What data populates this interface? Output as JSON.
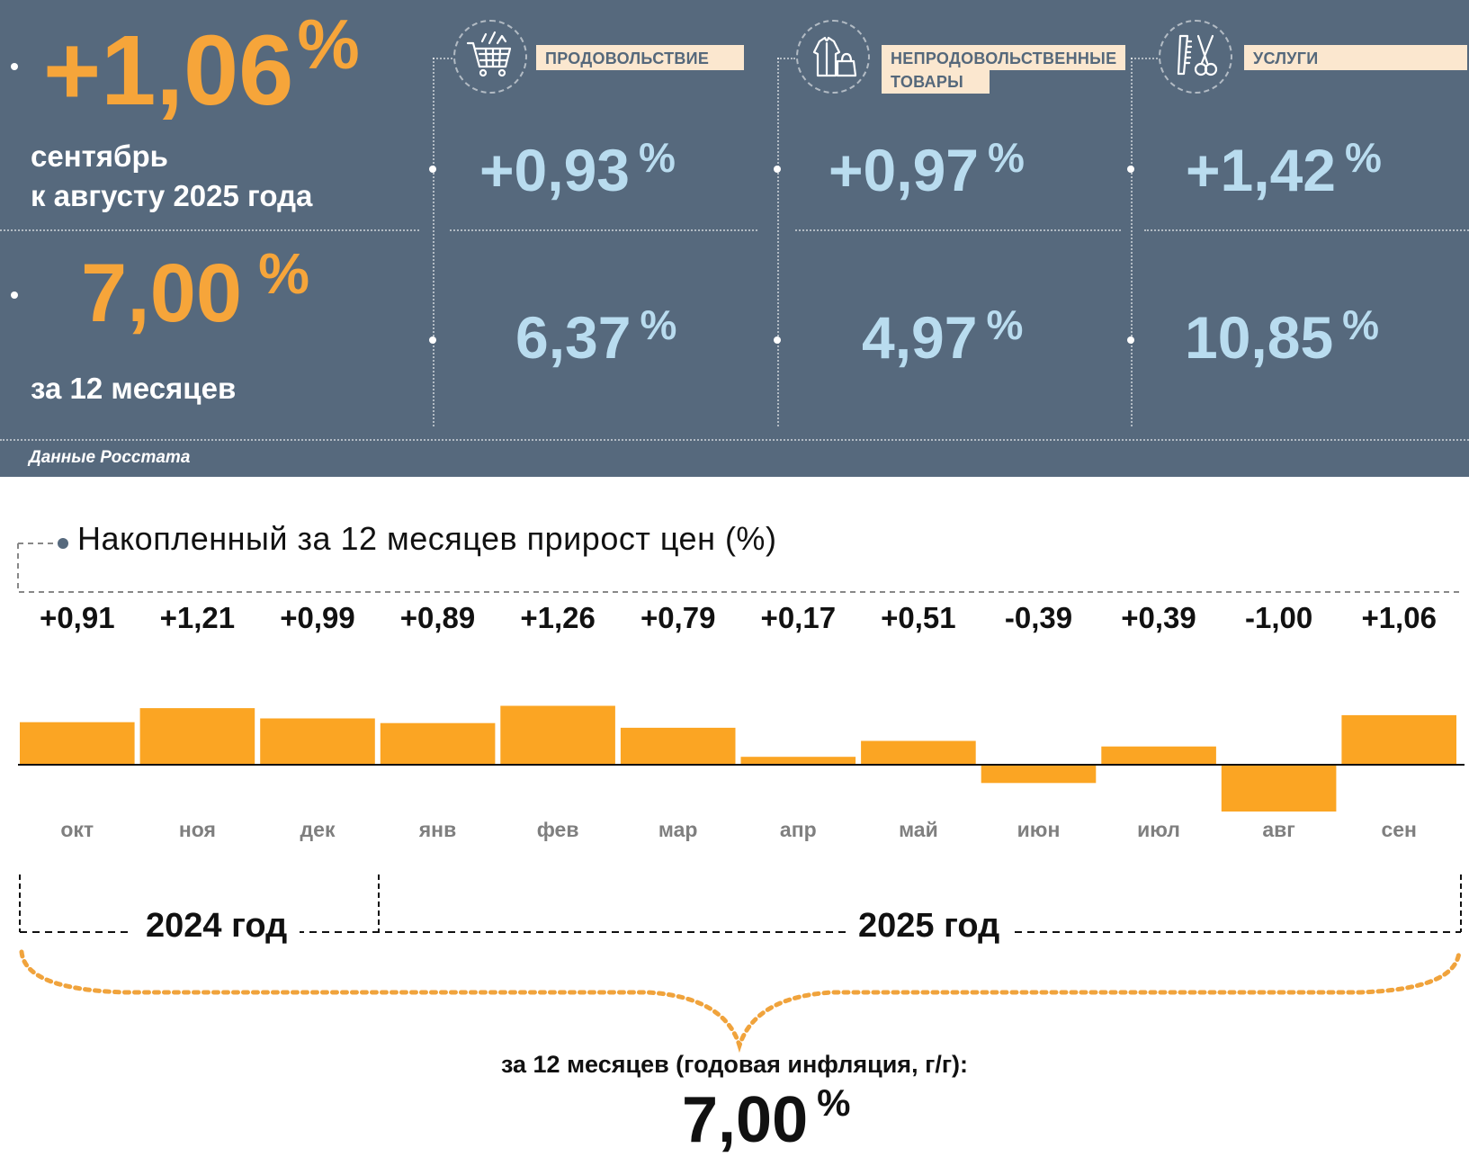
{
  "summary": {
    "monthly": {
      "value": "+1,06",
      "unit": "%",
      "label_line1": "сентябрь",
      "label_line2": "к августу 2025 года"
    },
    "annual": {
      "value": "7,00",
      "unit": "%",
      "label": "за 12 месяцев"
    },
    "source": "Данные Росстата"
  },
  "categories": [
    {
      "name": "ПРОДОВОЛЬСТВИЕ",
      "icon": "shopping-cart-icon",
      "monthly": "+0,93",
      "annual": "6,37",
      "unit": "%"
    },
    {
      "name_line1": "НЕПРОДОВОЛЬСТВЕННЫЕ",
      "name_line2": "ТОВАРЫ",
      "icon": "clothing-bag-icon",
      "monthly": "+0,97",
      "annual": "4,97",
      "unit": "%"
    },
    {
      "name": "УСЛУГИ",
      "icon": "comb-scissors-icon",
      "monthly": "+1,42",
      "annual": "10,85",
      "unit": "%"
    }
  ],
  "colors": {
    "panel": "#56697d",
    "orange": "#f6a53a",
    "blue_value": "#b9dcef",
    "label_box": "#fbe7cf",
    "bar": "#fba523"
  },
  "chart_data": {
    "type": "bar",
    "title": "Накопленный за 12 месяцев прирост цен (%)",
    "categories": [
      "окт",
      "ноя",
      "дек",
      "янв",
      "фев",
      "мар",
      "апр",
      "май",
      "июн",
      "июл",
      "авг",
      "сен"
    ],
    "values": [
      0.91,
      1.21,
      0.99,
      0.89,
      1.26,
      0.79,
      0.17,
      0.51,
      -0.39,
      0.39,
      -1.0,
      1.06
    ],
    "value_labels": [
      "+0,91",
      "+1,21",
      "+0,99",
      "+0,89",
      "+1,26",
      "+0,79",
      "+0,17",
      "+0,51",
      "-0,39",
      "+0,39",
      "-1,00",
      "+1,06"
    ],
    "years": [
      {
        "label": "2024 год",
        "months": [
          "окт",
          "ноя",
          "дек"
        ]
      },
      {
        "label": "2025 год",
        "months": [
          "янв",
          "фев",
          "мар",
          "апр",
          "май",
          "июн",
          "июл",
          "авг",
          "сен"
        ]
      }
    ],
    "grid": false
  },
  "total": {
    "caption": "за 12 месяцев (годовая инфляция, г/г):",
    "value": "7,00",
    "unit": "%"
  }
}
